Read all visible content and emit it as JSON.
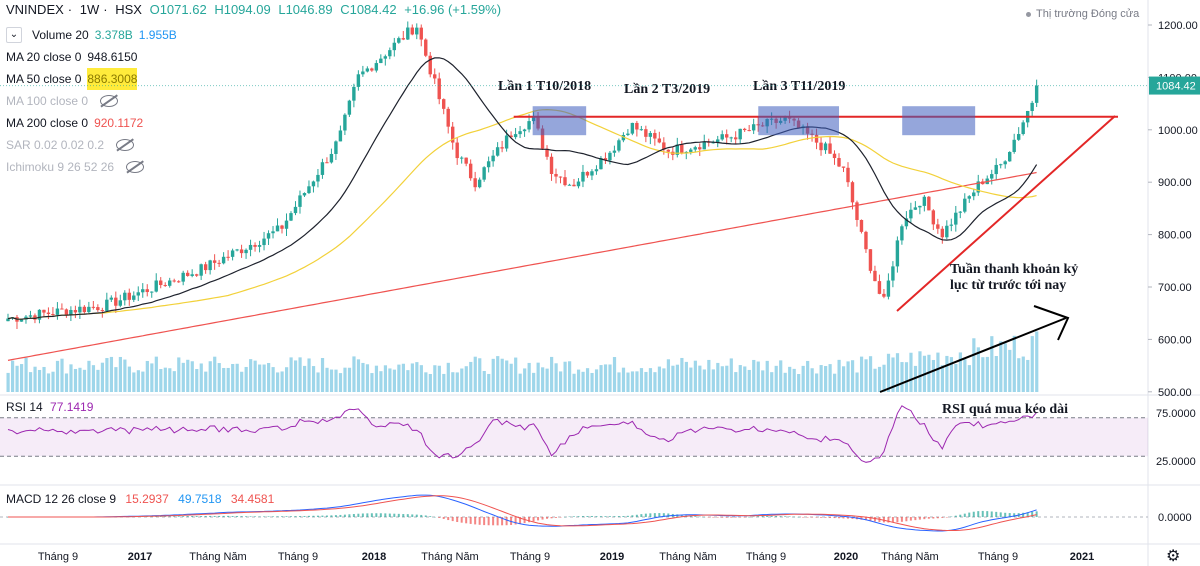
{
  "header": {
    "symbol": "VNINDEX",
    "interval": "1W",
    "exchange": "HSX",
    "open": "O1071.62",
    "high": "H1094.09",
    "low": "L1046.89",
    "close": "C1084.42",
    "change": "+16.96 (+1.59%)",
    "market_status": "Thị trường Đóng cửa"
  },
  "indicators": [
    {
      "name": "Volume 20",
      "v1": "3.378B",
      "v2": "1.955B",
      "visible": true
    },
    {
      "name": "MA 20 close 0",
      "v1": "948.6150",
      "visible": true
    },
    {
      "name": "MA 50 close 0",
      "v1": "886.3008",
      "visible": true
    },
    {
      "name": "MA 100 close 0",
      "visible": false
    },
    {
      "name": "MA 200 close 0",
      "v1": "920.1172",
      "visible": true
    },
    {
      "name": "SAR 0.02 0.02 0.2",
      "visible": false
    },
    {
      "name": "Ichimoku 9 26 52 26",
      "visible": false
    }
  ],
  "rsi": {
    "label": "RSI 14",
    "value": "77.1419"
  },
  "macd": {
    "label": "MACD 12 26 close 9",
    "v1": "15.2937",
    "v2": "49.7518",
    "v3": "34.4581"
  },
  "colors": {
    "up": "#26a69a",
    "down": "#ef5350",
    "ma20": "#1e222d",
    "ma50": "#ffeb3b",
    "ma200": "#ef5350",
    "volume": "#4fb4d9",
    "rsi": "#9c27b0",
    "annotation": "#e32727"
  },
  "annotations": {
    "touch1": "Lần 1 T10/2018",
    "touch2": "Lần 2 T3/2019",
    "touch3": "Lần 3 T11/2019",
    "volume_note_1": "Tuần thanh khoản kỷ",
    "volume_note_2": "lục từ trước tới nay",
    "rsi_note": "RSI quá mua kéo dài"
  },
  "chart_data": {
    "type": "candlestick",
    "title": "VNINDEX · 1W · HSX",
    "price_axis": {
      "ticks": [
        500,
        600,
        700,
        800,
        900,
        1000,
        1100,
        1200
      ],
      "tick_labels": [
        "500.00",
        "600.00",
        "700.00",
        "800.00",
        "900.00",
        "1000.00",
        "1100.00",
        "1200.00"
      ],
      "last_price": 1084.42,
      "last_price_label": "1084.42"
    },
    "time_axis": {
      "labels": [
        "Tháng 9",
        "2017",
        "Tháng Năm",
        "Tháng 9",
        "2018",
        "Tháng Năm",
        "Tháng 9",
        "2019",
        "Tháng Năm",
        "Tháng 9",
        "2020",
        "Tháng Năm",
        "Tháng 9",
        "2021"
      ]
    },
    "key_points": [
      {
        "date": "2016-07",
        "price": 640
      },
      {
        "date": "2016-12",
        "price": 665
      },
      {
        "date": "2017-05",
        "price": 735
      },
      {
        "date": "2017-09",
        "price": 810
      },
      {
        "date": "2017-12",
        "price": 980
      },
      {
        "date": "2018-01",
        "price": 1100
      },
      {
        "date": "2018-04",
        "price": 1200
      },
      {
        "date": "2018-06",
        "price": 960
      },
      {
        "date": "2018-07",
        "price": 900
      },
      {
        "date": "2018-09",
        "price": 1000
      },
      {
        "date": "2018-10",
        "price": 1020
      },
      {
        "date": "2018-11",
        "price": 920
      },
      {
        "date": "2018-12",
        "price": 895
      },
      {
        "date": "2019-02",
        "price": 960
      },
      {
        "date": "2019-03",
        "price": 1010
      },
      {
        "date": "2019-05",
        "price": 960
      },
      {
        "date": "2019-08",
        "price": 985
      },
      {
        "date": "2019-10",
        "price": 1010
      },
      {
        "date": "2019-11",
        "price": 1020
      },
      {
        "date": "2020-01",
        "price": 965
      },
      {
        "date": "2020-02",
        "price": 920
      },
      {
        "date": "2020-03",
        "price": 780
      },
      {
        "date": "2020-04",
        "price": 665
      },
      {
        "date": "2020-05",
        "price": 830
      },
      {
        "date": "2020-06",
        "price": 870
      },
      {
        "date": "2020-07",
        "price": 800
      },
      {
        "date": "2020-08",
        "price": 850
      },
      {
        "date": "2020-09",
        "price": 900
      },
      {
        "date": "2020-10",
        "price": 930
      },
      {
        "date": "2020-11",
        "price": 1000
      },
      {
        "date": "2020-12",
        "price": 1084
      }
    ],
    "resistance_level": 1025,
    "rsi_axis": {
      "ticks": [
        25,
        75
      ],
      "tick_labels": [
        "25.0000",
        "75.0000"
      ],
      "band": [
        30,
        70
      ]
    },
    "macd_axis": {
      "ticks": [
        0
      ],
      "tick_labels": [
        "0.0000"
      ]
    }
  }
}
